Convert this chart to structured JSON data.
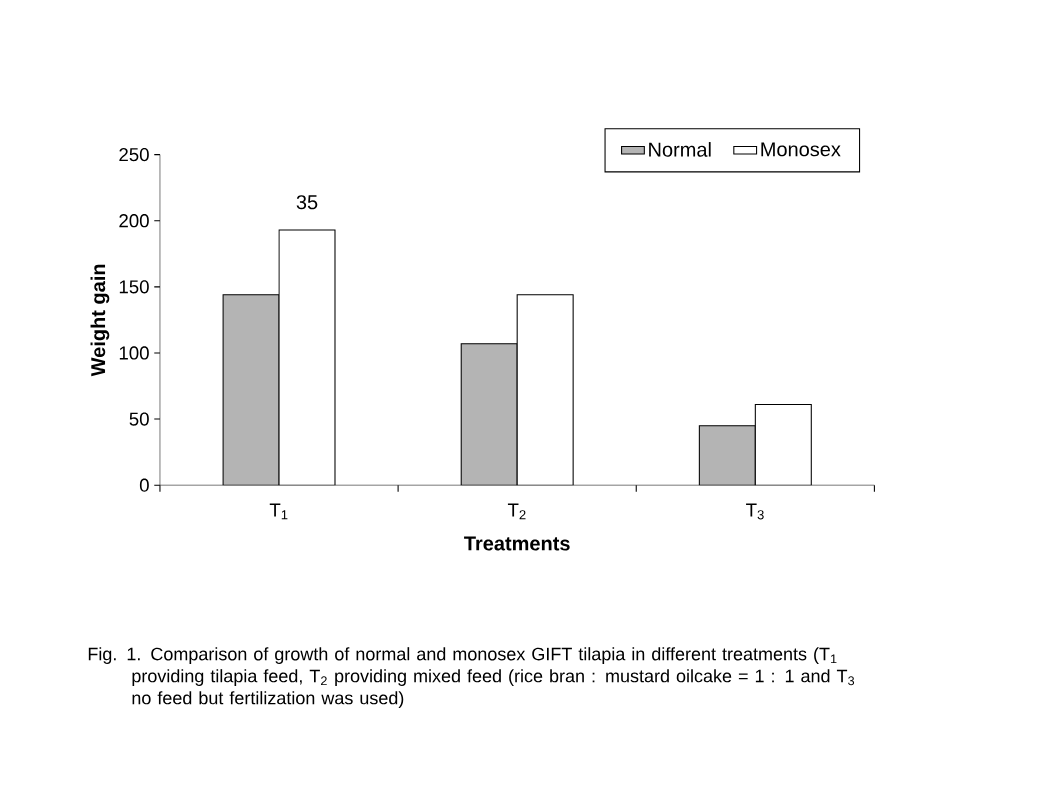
{
  "chart_data": {
    "type": "bar",
    "xlabel": "Treatments",
    "ylabel": "Weight gain",
    "categories": [
      "T$_{1}$",
      "T$_{2}$",
      "T$_{3}$"
    ],
    "series": [
      {
        "name": "Normal",
        "color": "#b4b4b4",
        "values": [
          144,
          107,
          45
        ]
      },
      {
        "name": "Monosex",
        "color": "#ffffff",
        "values": [
          193,
          144,
          61
        ]
      }
    ],
    "ylim": [
      0,
      250
    ],
    "yticks": [
      0,
      50,
      100,
      150,
      200,
      250
    ],
    "legend": "top right",
    "grid": false,
    "annotations": [
      "35",
      "Fig. 1. Comparison of growth of normal and monosex GIFT tilapia in different treatments (T$_{1}$ providing tilapia feed, T$_{2}$ providing mixed feed (rice bran : mustard oilcake = 1 : 1 and T$_{3}$ no feed but fertilization was used)"
    ]
  }
}
